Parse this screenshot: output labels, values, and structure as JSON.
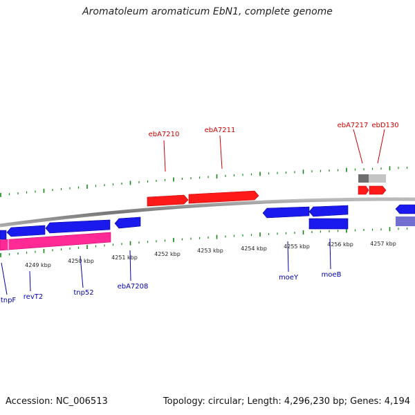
{
  "header": {
    "title": "Aromatoleum aromaticum EbN1, complete genome"
  },
  "footer": {
    "accession": "Accession: NC_006513",
    "summary": "Topology: circular; Length: 4,296,230 bp; Genes: 4,194"
  },
  "colors": {
    "forward_gene": "#ff1a1a",
    "reverse_gene": "#1a1aee",
    "rna_gene": "#ff2a95",
    "pseudo_gene": "#7070d0",
    "other_feature": "#777777",
    "backbone": "#888888",
    "tick": "#118811",
    "label_forward": "#cc0000",
    "label_reverse": "#0000aa"
  },
  "kbp_labels": [
    "4249 kbp",
    "4250 kbp",
    "4251 kbp",
    "4252 kbp",
    "4253 kbp",
    "4254 kbp",
    "4255 kbp",
    "4256 kbp",
    "4257 kbp"
  ],
  "forward_gene_labels": [
    "ebA7210",
    "ebA7211",
    "ebA7217",
    "ebD130"
  ],
  "reverse_gene_labels": [
    "tnpF",
    "revT2",
    "tnp52",
    "ebA7208",
    "moeY",
    "moeB"
  ]
}
